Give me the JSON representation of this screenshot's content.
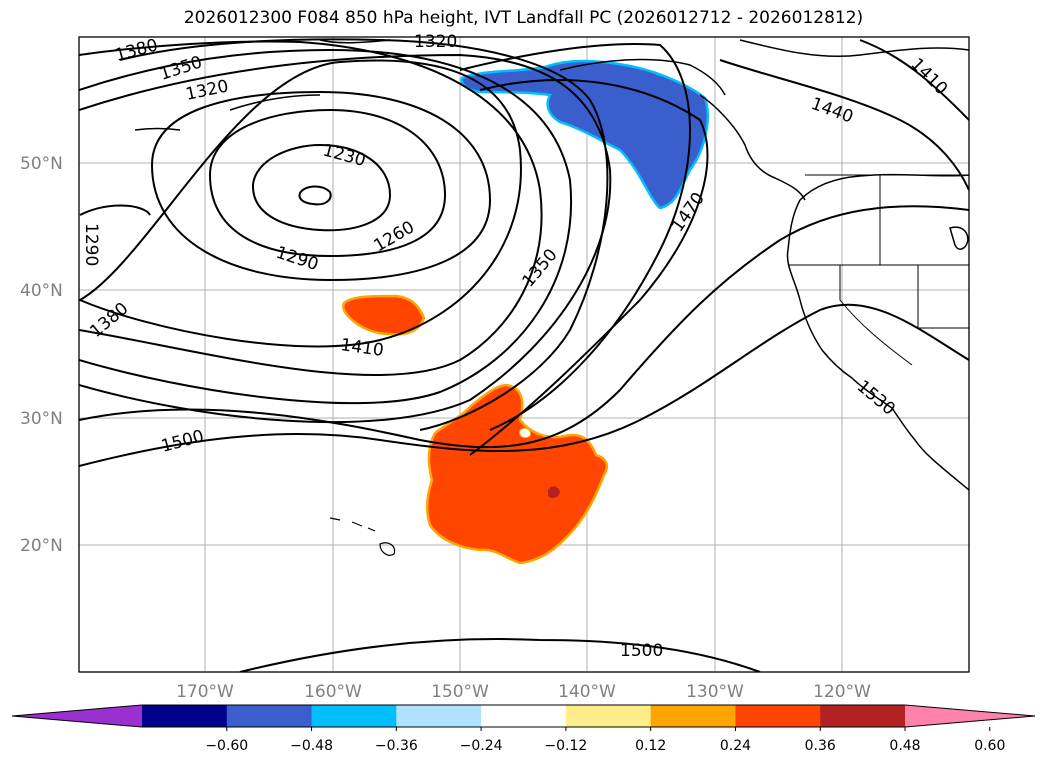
{
  "title": "2026012300 F084 850 hPa height, IVT Landfall PC (2026012712 - 2026012812)",
  "map": {
    "lat_labels": [
      "50°N",
      "40°N",
      "30°N",
      "20°N"
    ],
    "lon_labels": [
      "170°W",
      "160°W",
      "150°W",
      "140°W",
      "130°W",
      "120°W"
    ],
    "contour_labels": [
      "1380",
      "1350",
      "1320",
      "1320",
      "1230",
      "1260",
      "1290",
      "1290",
      "1380",
      "1410",
      "1350",
      "1470",
      "1440",
      "1410",
      "1530",
      "1500",
      "1500"
    ]
  },
  "colorbar": {
    "colors": [
      "#9b30d0",
      "#00008b",
      "#3a5fcd",
      "#00bfff",
      "#b0e2ff",
      "#ffffff",
      "#ffec8b",
      "#ffa500",
      "#ff4500",
      "#b22222",
      "#ff82ab"
    ],
    "tick_labels": [
      "−0.60",
      "−0.48",
      "−0.36",
      "−0.24",
      "−0.12",
      "0.12",
      "0.24",
      "0.36",
      "0.48",
      "0.60"
    ]
  }
}
